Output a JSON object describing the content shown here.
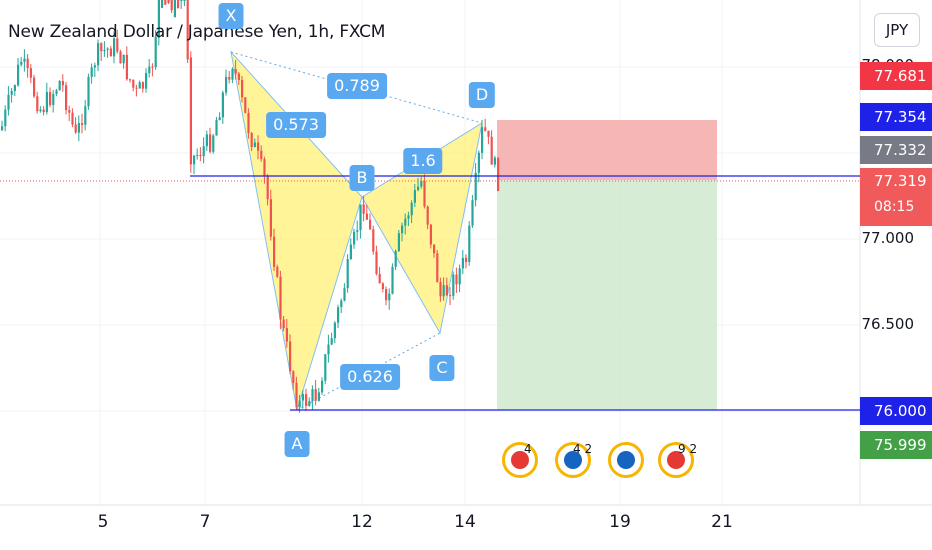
{
  "header": {
    "title": "New Zealand Dollar / Japanese Yen, 1h, FXCM"
  },
  "currency_button": {
    "label": "JPY"
  },
  "price_axis": {
    "ticks": [
      "78.000",
      "77.000",
      "76.500"
    ]
  },
  "price_tags": {
    "red": {
      "label": "77.681",
      "color": "#f23645"
    },
    "blue_upper": {
      "label": "77.354",
      "color": "#1e22e8"
    },
    "gray": {
      "label": "77.332",
      "color": "#787b86"
    },
    "current": {
      "label": "77.319",
      "countdown": "08:15",
      "color": "#f05a5a"
    },
    "blue_lower": {
      "label": "76.000",
      "color": "#1e22e8"
    },
    "green": {
      "label": "75.999",
      "color": "#43a047"
    }
  },
  "time_axis": {
    "ticks": [
      "5",
      "7",
      "12",
      "14",
      "19",
      "21"
    ]
  },
  "pattern": {
    "points": {
      "x": "X",
      "a": "A",
      "b": "B",
      "c": "C",
      "d": "D"
    },
    "ratios": {
      "xb": "0.573",
      "xd": "0.789",
      "bd": "1.6",
      "ac": "0.626"
    }
  },
  "events": [
    {
      "counts": "4",
      "color": "#e53935"
    },
    {
      "counts": "4 2",
      "color": "#1565c0"
    },
    {
      "counts": "",
      "color": "#1565c0"
    },
    {
      "counts": "9 2",
      "color": "#e53935"
    }
  ],
  "colors": {
    "up": "#26a69a",
    "down": "#ef5350",
    "pattern_fill": "#fff176",
    "stop_zone": "#f5a9a9",
    "target_zone": "#cfe9cc",
    "label_bg": "#5aa9f0"
  }
}
